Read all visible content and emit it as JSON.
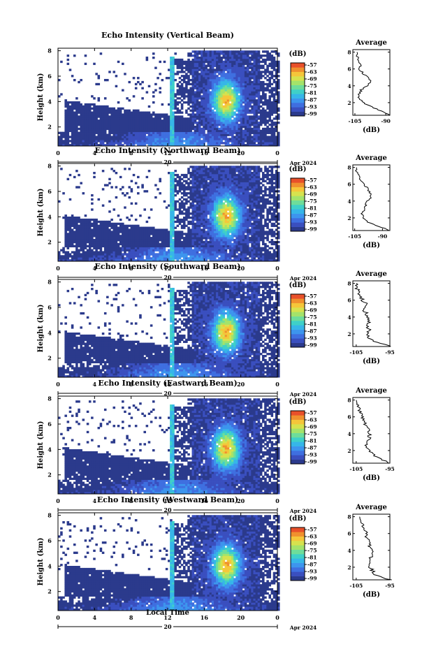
{
  "figure": {
    "x_axis_label": "Local Time",
    "date_label": "Apr 2024",
    "day_label": "20",
    "colorbar_unit": "(dB)",
    "colorbar_ticks": [
      "-57",
      "-63",
      "-69",
      "-75",
      "-81",
      "-87",
      "-93",
      "-99"
    ],
    "colors": [
      "#2b3a8c",
      "#3a4fbf",
      "#3f6fe0",
      "#3d95ee",
      "#36b6e8",
      "#3fd0c8",
      "#6edd9a",
      "#a4e36a",
      "#d7e24e",
      "#f5c63a",
      "#f0902e",
      "#e8502a"
    ]
  },
  "chart_data": [
    {
      "type": "heatmap",
      "title": "Echo Intensity (Vertical Beam)",
      "ylabel": "Height (km)",
      "x_ticks": [
        "0",
        "4",
        "8",
        "12",
        "16",
        "20",
        "0"
      ],
      "x_range_hours": [
        0,
        24
      ],
      "y_ticks": [
        "2",
        "4",
        "6",
        "8"
      ],
      "y_range_km": [
        0.5,
        8.2
      ],
      "color_range_db": [
        -99,
        -57
      ],
      "profile": {
        "title": "Average",
        "xlabel": "(dB)",
        "x_ticks": [
          "-105",
          "-90"
        ],
        "x_range": [
          -106,
          -88
        ],
        "y_ticks": [
          "2",
          "4",
          "6",
          "8"
        ],
        "heights_km": [
          0.5,
          1,
          1.5,
          2,
          2.5,
          3,
          3.5,
          4,
          4.5,
          5,
          5.5,
          6,
          6.5,
          7,
          7.5,
          8
        ],
        "values_db": [
          -88,
          -92,
          -97,
          -101,
          -103,
          -103,
          -102,
          -99,
          -97,
          -99,
          -101,
          -103,
          -102,
          -103,
          -104,
          -104
        ]
      }
    },
    {
      "type": "heatmap",
      "title": "Echo Intensity (Northward Beam)",
      "ylabel": "Height (km)",
      "x_ticks": [
        "0",
        "4",
        "8",
        "12",
        "16",
        "20",
        "0"
      ],
      "x_range_hours": [
        0,
        24
      ],
      "y_ticks": [
        "2",
        "4",
        "6",
        "8"
      ],
      "y_range_km": [
        0.5,
        8.2
      ],
      "color_range_db": [
        -99,
        -57
      ],
      "profile": {
        "title": "Average",
        "xlabel": "(dB)",
        "x_ticks": [
          "-105",
          "-90"
        ],
        "x_range": [
          -106,
          -86
        ],
        "y_ticks": [
          "2",
          "4",
          "6",
          "8"
        ],
        "heights_km": [
          0.5,
          1,
          1.5,
          2,
          2.5,
          3,
          3.5,
          4,
          4.5,
          5,
          5.5,
          6,
          6.5,
          7,
          7.5,
          8
        ],
        "values_db": [
          -86,
          -92,
          -98,
          -100,
          -101,
          -100,
          -99,
          -98,
          -96,
          -97,
          -98,
          -100,
          -102,
          -103,
          -104,
          -104
        ]
      }
    },
    {
      "type": "heatmap",
      "title": "Echo Intensity (Southward Beam)",
      "ylabel": "Height (km)",
      "x_ticks": [
        "0",
        "4",
        "8",
        "12",
        "16",
        "20",
        "0"
      ],
      "x_range_hours": [
        0,
        24
      ],
      "y_ticks": [
        "2",
        "4",
        "6",
        "8"
      ],
      "y_range_km": [
        0.5,
        8.2
      ],
      "color_range_db": [
        -99,
        -57
      ],
      "profile": {
        "title": "Average",
        "xlabel": "(dB)",
        "x_ticks": [
          "-105",
          "-95"
        ],
        "x_range": [
          -106,
          -95
        ],
        "y_ticks": [
          "2",
          "4",
          "6",
          "8"
        ],
        "heights_km": [
          0.5,
          1,
          1.5,
          2,
          2.5,
          3,
          3.5,
          4,
          4.5,
          5,
          5.5,
          6,
          6.5,
          7,
          7.5,
          8
        ],
        "values_db": [
          -95,
          -99,
          -101,
          -102,
          -101,
          -102,
          -101,
          -102,
          -102,
          -103,
          -102,
          -103,
          -104,
          -104,
          -105,
          -105
        ]
      }
    },
    {
      "type": "heatmap",
      "title": "Echo Intensity (Eastward Beam)",
      "ylabel": "Height (km)",
      "x_ticks": [
        "0",
        "4",
        "8",
        "12",
        "16",
        "20",
        "0"
      ],
      "x_range_hours": [
        0,
        24
      ],
      "y_ticks": [
        "2",
        "4",
        "6",
        "8"
      ],
      "y_range_km": [
        0.5,
        8.2
      ],
      "color_range_db": [
        -99,
        -57
      ],
      "profile": {
        "title": "Average",
        "xlabel": "(dB)",
        "x_ticks": [
          "-105",
          "-95"
        ],
        "x_range": [
          -106,
          -95
        ],
        "y_ticks": [
          "2",
          "4",
          "6",
          "8"
        ],
        "heights_km": [
          0.5,
          1,
          1.5,
          2,
          2.5,
          3,
          3.5,
          4,
          4.5,
          5,
          5.5,
          6,
          6.5,
          7,
          7.5,
          8
        ],
        "values_db": [
          -95,
          -98,
          -100,
          -101,
          -102,
          -102,
          -101,
          -101,
          -101,
          -102,
          -103,
          -103,
          -104,
          -104,
          -105,
          -105
        ]
      }
    },
    {
      "type": "heatmap",
      "title": "Echo Intensity (Westward Beam)",
      "ylabel": "Height (km)",
      "x_ticks": [
        "0",
        "4",
        "8",
        "12",
        "16",
        "20",
        "0"
      ],
      "x_range_hours": [
        0,
        24
      ],
      "y_ticks": [
        "2",
        "4",
        "6",
        "8"
      ],
      "y_range_km": [
        0.5,
        8.2
      ],
      "color_range_db": [
        -99,
        -57
      ],
      "profile": {
        "title": "Average",
        "xlabel": "(dB)",
        "x_ticks": [
          "-105",
          "-95"
        ],
        "x_range": [
          -106,
          -95
        ],
        "y_ticks": [
          "2",
          "4",
          "6",
          "8"
        ],
        "heights_km": [
          0.5,
          1,
          1.5,
          2,
          2.5,
          3,
          3.5,
          4,
          4.5,
          5,
          5.5,
          6,
          6.5,
          7,
          7.5,
          8
        ],
        "values_db": [
          -95,
          -99,
          -100,
          -101,
          -101,
          -101,
          -100,
          -100,
          -101,
          -101,
          -102,
          -102,
          -103,
          -103,
          -104,
          -104
        ]
      }
    }
  ]
}
